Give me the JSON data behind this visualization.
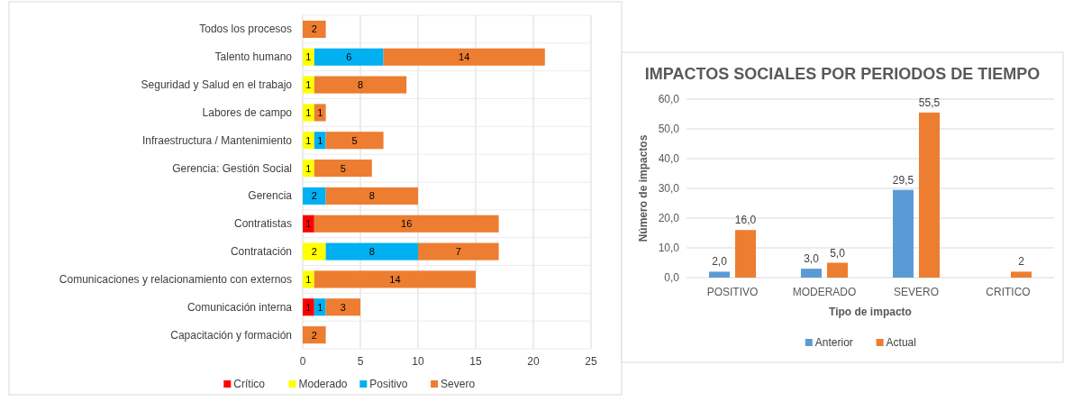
{
  "chart_data": [
    {
      "type": "bar",
      "orientation": "horizontal",
      "stacked": true,
      "categories": [
        "Todos los procesos",
        "Talento humano",
        "Seguridad y Salud en el trabajo",
        "Labores de campo",
        "Infraestructura / Mantenimiento",
        "Gerencia: Gestión Social",
        "Gerencia",
        "Contratistas",
        "Contratación",
        "Comunicaciones y relacionamiento con externos",
        "Comunicación interna",
        "Capacitación y formación"
      ],
      "series": [
        {
          "name": "Crítico",
          "color": "#ff0000",
          "values": [
            null,
            null,
            null,
            null,
            null,
            null,
            null,
            1,
            null,
            null,
            1,
            null
          ]
        },
        {
          "name": "Moderado",
          "color": "#ffff00",
          "values": [
            null,
            1,
            1,
            1,
            1,
            1,
            null,
            null,
            2,
            1,
            null,
            null
          ]
        },
        {
          "name": "Positivo",
          "color": "#00b0f0",
          "values": [
            null,
            6,
            null,
            null,
            1,
            null,
            2,
            null,
            8,
            null,
            1,
            null
          ]
        },
        {
          "name": "Severo",
          "color": "#ed7d31",
          "values": [
            2,
            14,
            8,
            1,
            5,
            5,
            8,
            16,
            7,
            14,
            3,
            2
          ]
        }
      ],
      "xlim": [
        0,
        25
      ],
      "xticks": [
        0,
        5,
        10,
        15,
        20,
        25
      ],
      "grid": "x",
      "legend": "bottom",
      "data_labels": true
    },
    {
      "type": "bar",
      "title": "IMPACTOS SOCIALES POR PERIODOS DE TIEMPO",
      "xlabel": "Tipo de impacto",
      "ylabel": "Número de impactos",
      "categories": [
        "POSITIVO",
        "MODERADO",
        "SEVERO",
        "CRITICO"
      ],
      "series": [
        {
          "name": "Anterior",
          "color": "#5b9bd5",
          "values": [
            2.0,
            3.0,
            29.5,
            null
          ],
          "value_labels": [
            "2,0",
            "3,0",
            "29,5",
            null
          ]
        },
        {
          "name": "Actual",
          "color": "#ed7d31",
          "values": [
            16.0,
            5.0,
            55.5,
            2
          ],
          "value_labels": [
            "16,0",
            "5,0",
            "55,5",
            "2"
          ]
        }
      ],
      "ylim": [
        0,
        60
      ],
      "yticks": [
        {
          "value": 0,
          "label": "0,0"
        },
        {
          "value": 10,
          "label": "10,0"
        },
        {
          "value": 20,
          "label": "20,0"
        },
        {
          "value": 30,
          "label": "30,0"
        },
        {
          "value": 40,
          "label": "40,0"
        },
        {
          "value": 50,
          "label": "50,0"
        },
        {
          "value": 60,
          "label": "60,0"
        }
      ],
      "grid": "y",
      "legend": "bottom"
    }
  ]
}
